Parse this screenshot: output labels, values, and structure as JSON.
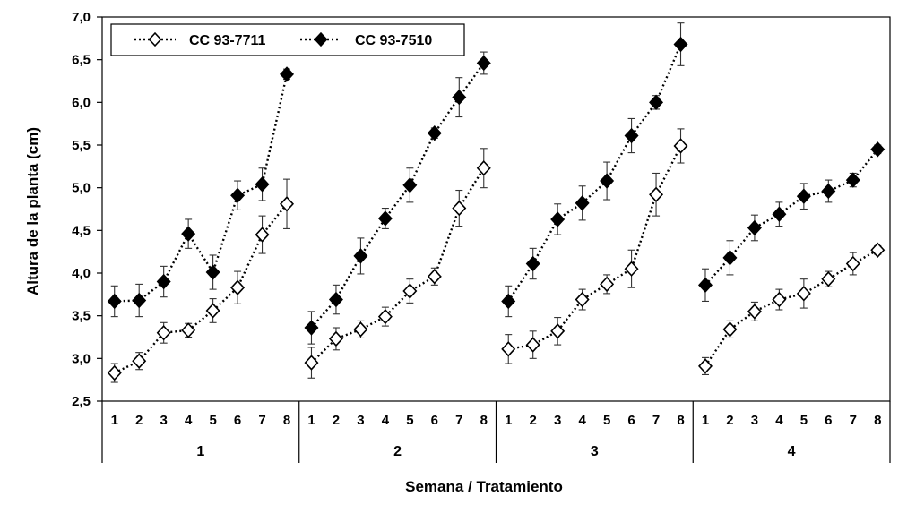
{
  "chart_data": {
    "type": "line",
    "xlabel": "Semana / Tratamiento",
    "ylabel": "Altura de la planta (cm)",
    "ylim": [
      2.5,
      7.0
    ],
    "y_ticks": [
      "2,5",
      "3,0",
      "3,5",
      "4,0",
      "4,5",
      "5,0",
      "5,5",
      "6,0",
      "6,5",
      "7,0"
    ],
    "groups": [
      "1",
      "2",
      "3",
      "4"
    ],
    "weeks": [
      "1",
      "2",
      "3",
      "4",
      "5",
      "6",
      "7",
      "8"
    ],
    "legend_position": "top-left",
    "grid": false,
    "series": [
      {
        "name": "CC 93-7711",
        "marker": "open-diamond",
        "color": "#000000",
        "values": [
          [
            2.83,
            2.97,
            3.3,
            3.33,
            3.56,
            3.83,
            4.45,
            4.81
          ],
          [
            2.95,
            3.23,
            3.34,
            3.49,
            3.79,
            3.96,
            4.76,
            5.23
          ],
          [
            3.11,
            3.16,
            3.32,
            3.69,
            3.87,
            4.05,
            4.92,
            5.49
          ],
          [
            2.91,
            3.34,
            3.55,
            3.69,
            3.76,
            3.93,
            4.11,
            4.27
          ]
        ],
        "errors": [
          [
            0.11,
            0.1,
            0.12,
            0.08,
            0.14,
            0.19,
            0.22,
            0.29
          ],
          [
            0.18,
            0.13,
            0.1,
            0.11,
            0.14,
            0.1,
            0.21,
            0.23
          ],
          [
            0.17,
            0.16,
            0.16,
            0.12,
            0.11,
            0.22,
            0.25,
            0.2
          ],
          [
            0.1,
            0.1,
            0.11,
            0.12,
            0.17,
            0.09,
            0.13,
            0.05
          ]
        ]
      },
      {
        "name": "CC 93-7510",
        "marker": "filled-diamond",
        "color": "#000000",
        "values": [
          [
            3.67,
            3.68,
            3.9,
            4.46,
            4.01,
            4.91,
            5.04,
            6.33
          ],
          [
            3.36,
            3.69,
            4.2,
            4.64,
            5.03,
            5.64,
            6.06,
            6.46
          ],
          [
            3.67,
            4.11,
            4.63,
            4.82,
            5.08,
            5.61,
            6.0,
            6.68
          ],
          [
            3.86,
            4.18,
            4.53,
            4.69,
            4.9,
            4.96,
            5.09,
            5.45
          ]
        ],
        "errors": [
          [
            0.18,
            0.19,
            0.18,
            0.17,
            0.2,
            0.17,
            0.19,
            0.06
          ],
          [
            0.19,
            0.17,
            0.21,
            0.12,
            0.2,
            0.06,
            0.23,
            0.13
          ],
          [
            0.18,
            0.18,
            0.18,
            0.2,
            0.22,
            0.2,
            0.08,
            0.25
          ],
          [
            0.19,
            0.2,
            0.15,
            0.14,
            0.15,
            0.13,
            0.08,
            0.05
          ]
        ]
      }
    ]
  }
}
